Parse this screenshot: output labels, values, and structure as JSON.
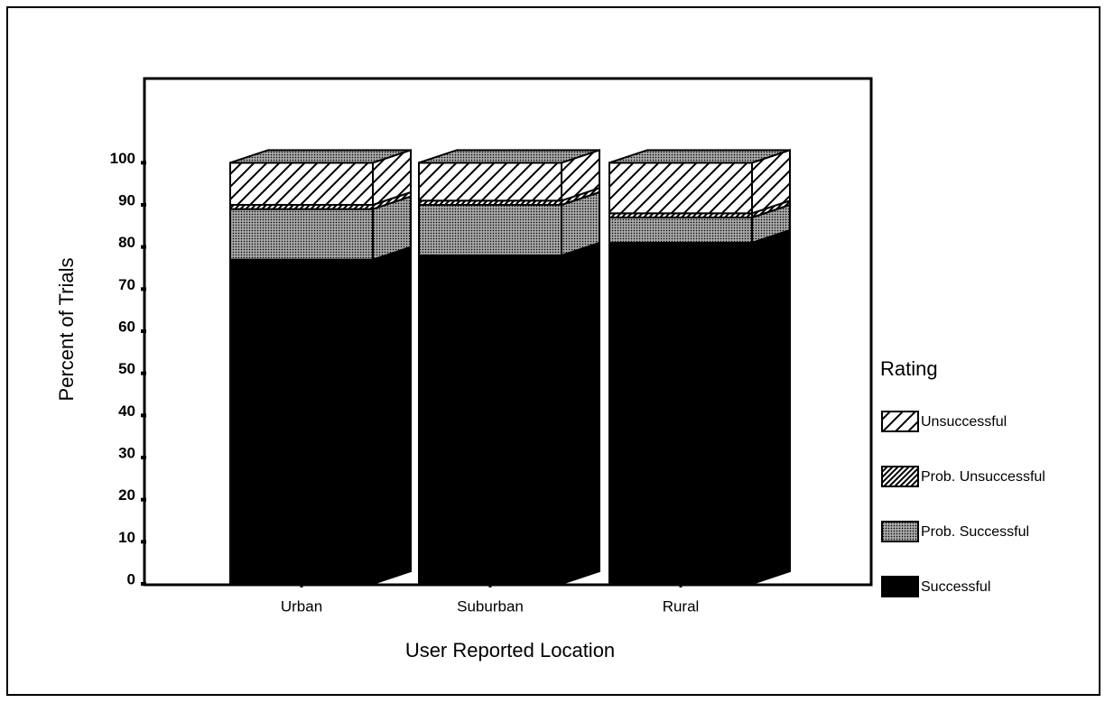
{
  "chart_data": {
    "type": "bar",
    "stacked": true,
    "three_d": true,
    "xlabel": "User Reported Location",
    "ylabel": "Percent of Trials",
    "categories": [
      "Urban",
      "Suburban",
      "Rural"
    ],
    "series": [
      {
        "name": "Successful",
        "color": "#000000",
        "pattern": "solid",
        "values": [
          77,
          78,
          81
        ]
      },
      {
        "name": "Prob. Successful",
        "color": "#8a8a8a",
        "pattern": "dots",
        "values": [
          12,
          12,
          6
        ]
      },
      {
        "name": "Prob. Unsuccessful",
        "color": "#ffffff",
        "pattern": "dense-hatch",
        "values": [
          1,
          1,
          1
        ]
      },
      {
        "name": "Unsuccessful",
        "color": "#ffffff",
        "pattern": "hatch",
        "values": [
          10,
          9,
          12
        ]
      }
    ],
    "legend_title": "Rating",
    "legend": "right",
    "ylim": [
      0,
      120
    ],
    "yticks": [
      0,
      10,
      20,
      30,
      40,
      50,
      60,
      70,
      80,
      90,
      100
    ]
  }
}
